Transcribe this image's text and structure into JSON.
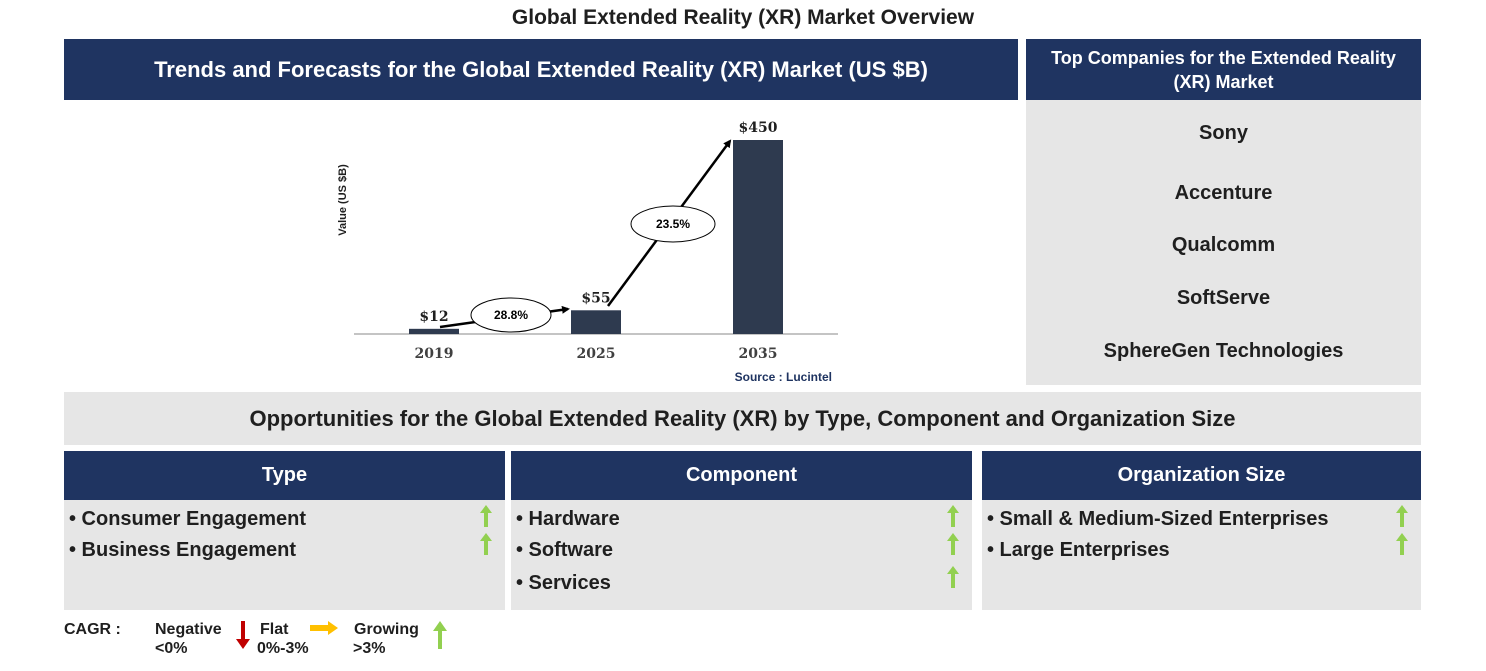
{
  "page_title": "Global Extended Reality (XR) Market Overview",
  "trend_header": "Trends and Forecasts for the Global Extended Reality (XR) Market (US $B)",
  "companies": {
    "header": "Top Companies for the Extended Reality (XR) Market",
    "list": [
      "Sony",
      "Accenture",
      "Qualcomm",
      "SoftServe",
      "SphereGen Technologies"
    ]
  },
  "chart_data": {
    "type": "bar",
    "categories": [
      "2019",
      "2025",
      "2035"
    ],
    "values": [
      12,
      55,
      450
    ],
    "value_labels": [
      "$12",
      "$55",
      "$450"
    ],
    "ylabel": "Value (US $B)",
    "source": "Source : Lucintel",
    "cagr": [
      "28.8%",
      "23.5%"
    ],
    "bar_color": "#2e3a4f"
  },
  "opportunities_header": "Opportunities for the Global Extended Reality (XR) by Type, Component and Organization Size",
  "segments": [
    {
      "title": "Type",
      "items": [
        "• Consumer Engagement",
        "• Business Engagement"
      ]
    },
    {
      "title": "Component",
      "items": [
        "• Hardware",
        "• Software",
        "• Services"
      ]
    },
    {
      "title": "Organization Size",
      "items": [
        "• Small & Medium-Sized Enterprises",
        "• Large Enterprises"
      ]
    }
  ],
  "legend": {
    "label": "CAGR :",
    "negative": {
      "name": "Negative",
      "range": "<0%",
      "color": "#c00000"
    },
    "flat": {
      "name": "Flat",
      "range": "0%-3%",
      "color": "#ffc000"
    },
    "growing": {
      "name": "Growing",
      "range": ">3%",
      "color": "#92d050"
    }
  }
}
